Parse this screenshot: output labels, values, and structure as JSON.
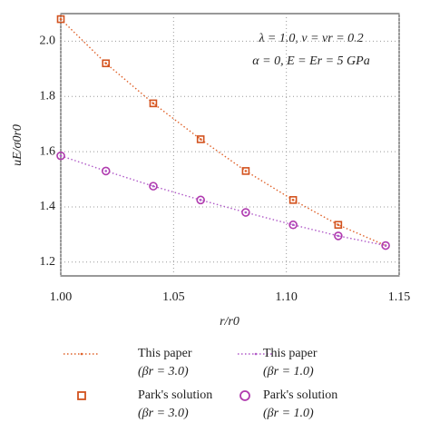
{
  "chart_data": {
    "type": "line",
    "annotations": [
      "λ = 1.0, ν = νr = 0.2",
      "α = 0, E = Er = 5 GPa"
    ],
    "x_label": "r/r0",
    "y_label": "uE/σ0r0",
    "xlim": [
      1.0,
      1.15
    ],
    "ylim": [
      1.15,
      2.1
    ],
    "xticks": [
      {
        "value": 1,
        "label": "1.00"
      },
      1.05,
      {
        "value": 1.1,
        "label": "1.10"
      },
      1.15
    ],
    "yticks": [
      1.2,
      1.4,
      1.6,
      1.8,
      {
        "value": 2,
        "label": "2.0"
      }
    ],
    "grid": true,
    "series": [
      {
        "name": "This paper",
        "param": "(βr = 3.0)",
        "kind": "line",
        "color": "#e0622a",
        "x": [
          1.0,
          1.02,
          1.041,
          1.062,
          1.082,
          1.103,
          1.123,
          1.144
        ],
        "values": [
          2.08,
          1.92,
          1.775,
          1.645,
          1.53,
          1.425,
          1.335,
          1.26
        ]
      },
      {
        "name": "This paper",
        "param": "(βr = 1.0)",
        "kind": "line",
        "color": "#b05ac8",
        "x": [
          1.0,
          1.02,
          1.041,
          1.062,
          1.082,
          1.103,
          1.123,
          1.144
        ],
        "values": [
          1.585,
          1.53,
          1.475,
          1.425,
          1.38,
          1.335,
          1.295,
          1.26
        ]
      },
      {
        "name": "Park's solution",
        "param": "(βr = 3.0)",
        "kind": "square",
        "color": "#d2521e",
        "x": [
          1.0,
          1.02,
          1.041,
          1.062,
          1.082,
          1.103,
          1.123
        ],
        "values": [
          2.08,
          1.92,
          1.775,
          1.645,
          1.53,
          1.425,
          1.335
        ]
      },
      {
        "name": "Park's solution",
        "param": "(βr = 1.0)",
        "kind": "circle",
        "color": "#b03aae",
        "x": [
          1.0,
          1.02,
          1.041,
          1.062,
          1.082,
          1.103,
          1.123,
          1.144
        ],
        "values": [
          1.585,
          1.53,
          1.475,
          1.425,
          1.38,
          1.335,
          1.295,
          1.26
        ]
      }
    ]
  }
}
